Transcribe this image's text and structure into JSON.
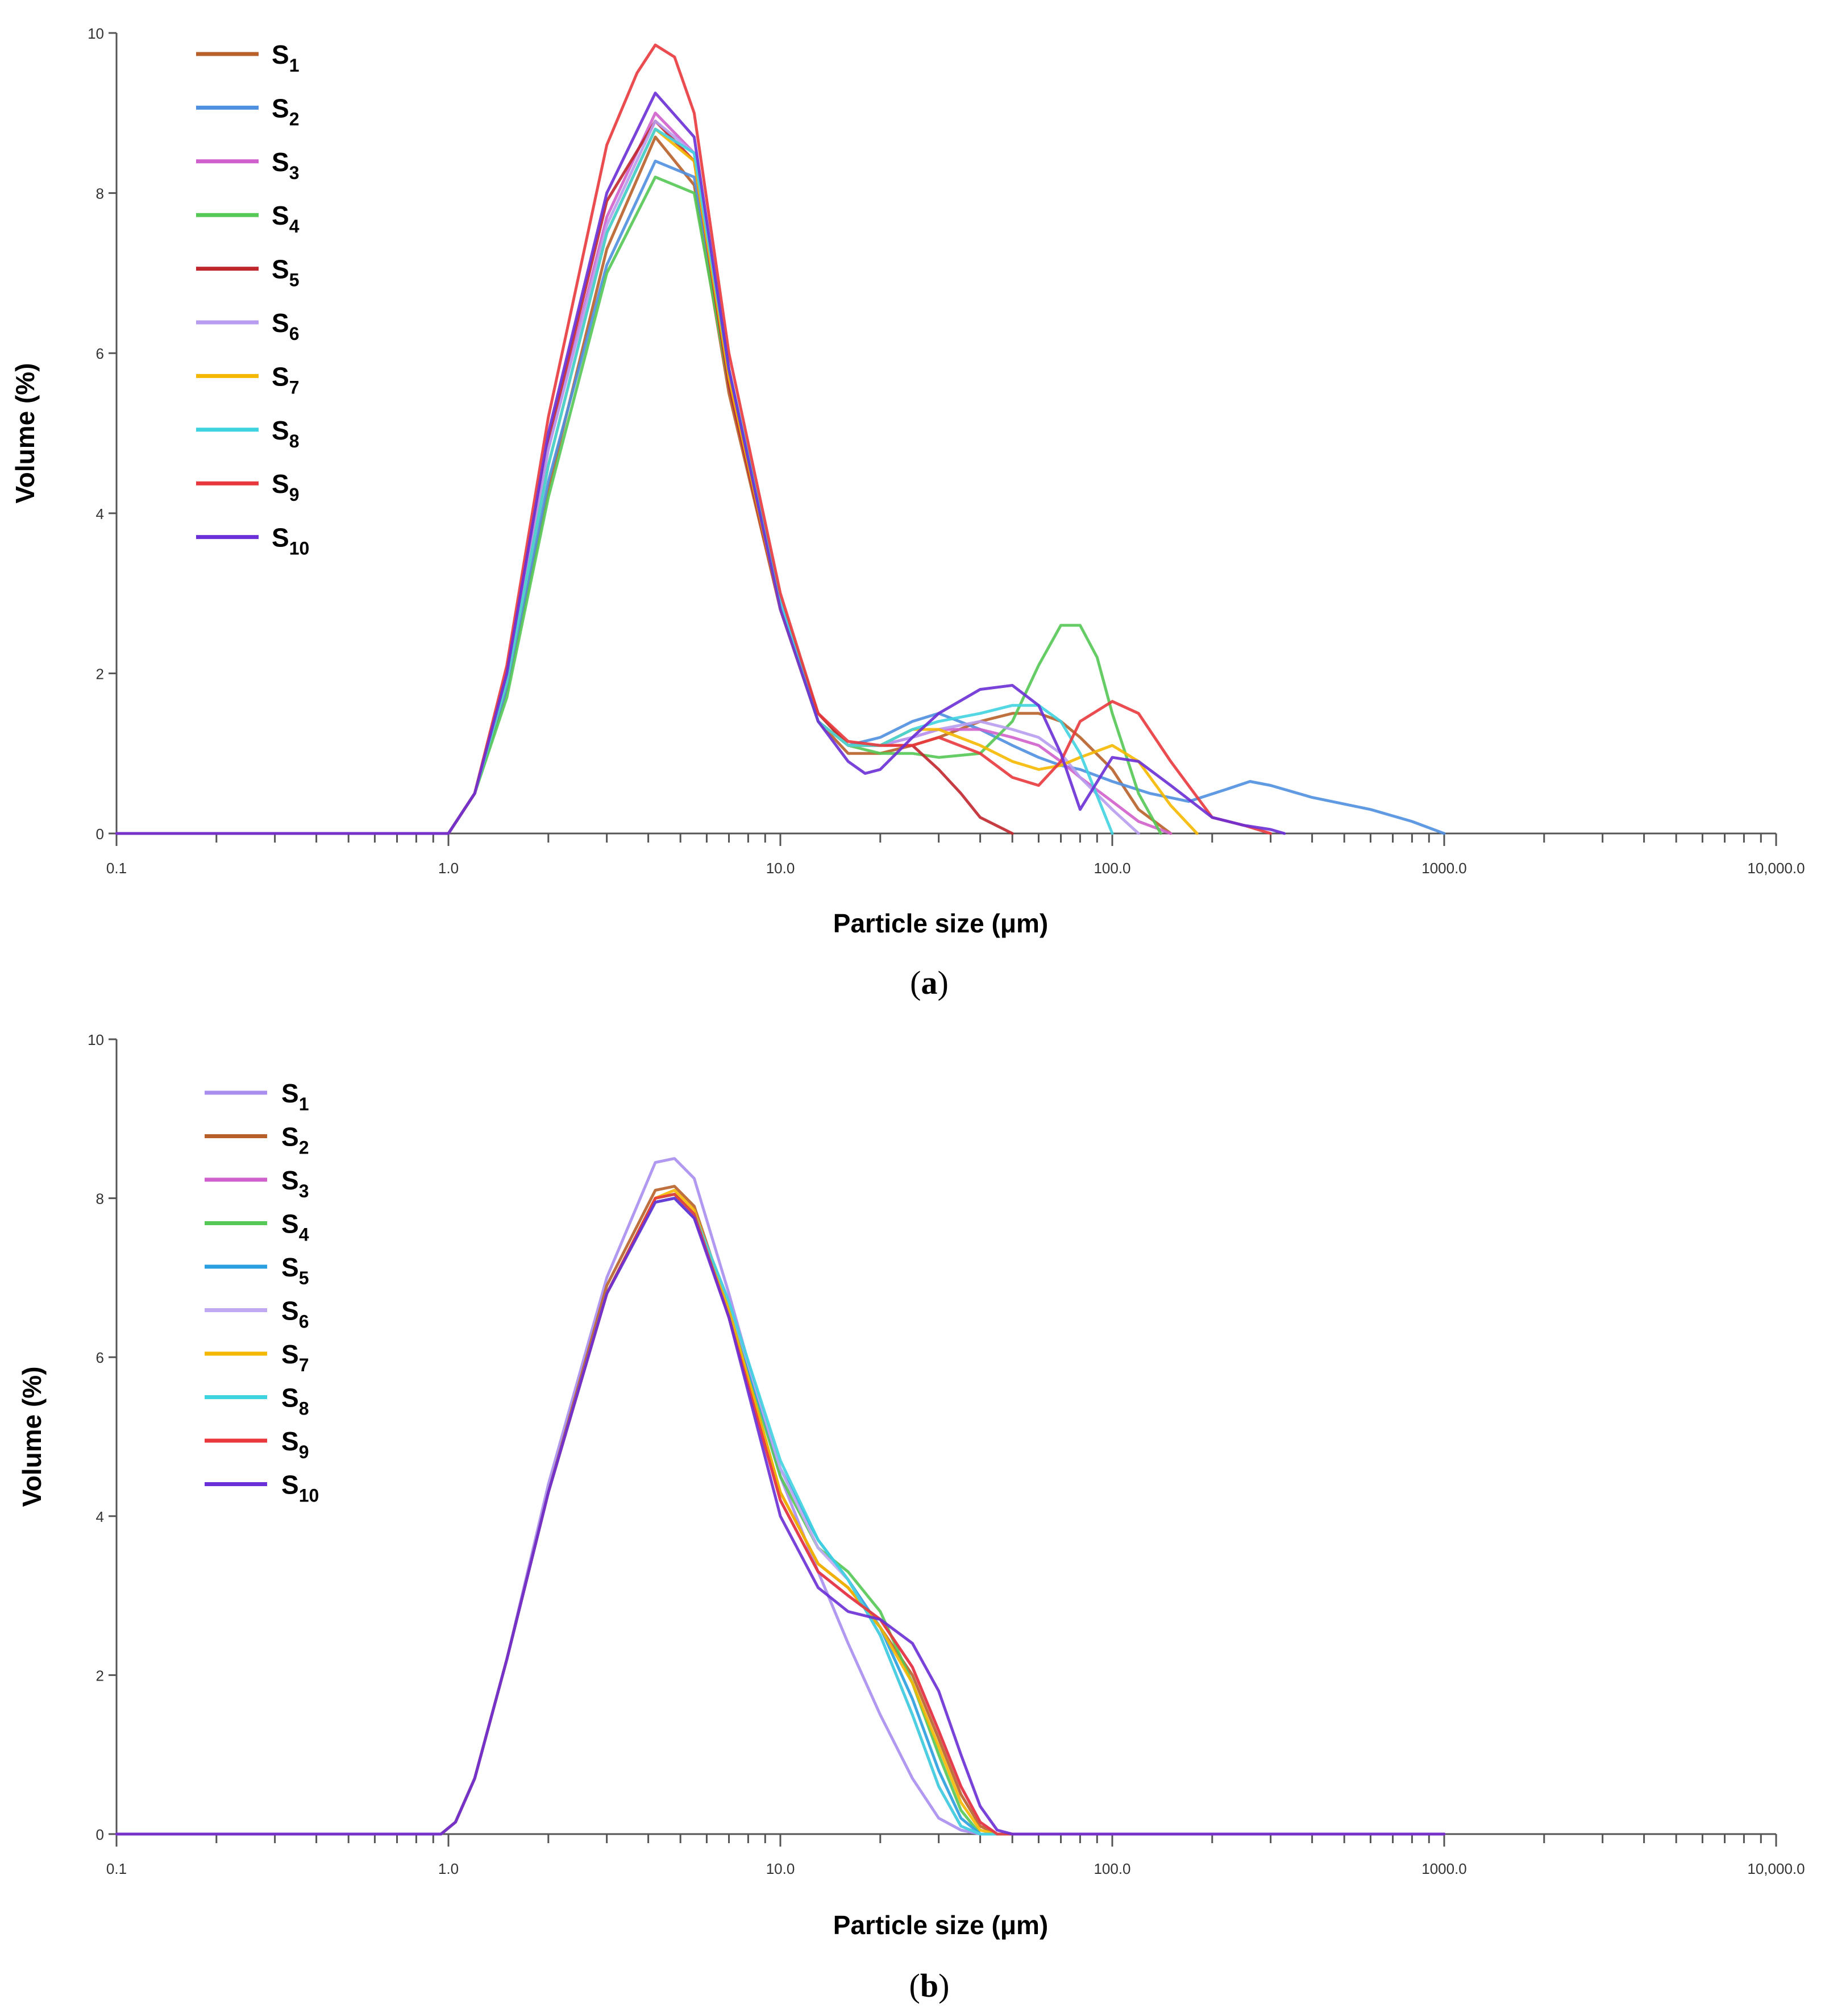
{
  "chart_data": [
    {
      "panel": "(a)",
      "panel_letter": "a",
      "type": "line",
      "xscale": "log",
      "xlim": [
        0.1,
        10000
      ],
      "ylim": [
        0,
        10
      ],
      "xlabel": "Particle size (μm)",
      "ylabel": "Volume (%)",
      "xtick_values": [
        0.1,
        1,
        10,
        100,
        1000,
        10000
      ],
      "xtick_labels": [
        "0.1",
        "1.0",
        "10.0",
        "100.0",
        "1000.0",
        "10,000.0"
      ],
      "ytick_values": [
        0,
        2,
        4,
        6,
        8,
        10
      ],
      "ytick_labels": [
        "0",
        "2",
        "4",
        "6",
        "8",
        "10"
      ],
      "legend_position": "top-left",
      "series": [
        {
          "name": "S",
          "sub": "1",
          "color": "#b8602a",
          "x": [
            0.1,
            1.0,
            1.2,
            1.5,
            2.0,
            3.0,
            4.2,
            5.5,
            7.0,
            10,
            13,
            16,
            20,
            25,
            30,
            40,
            50,
            60,
            70,
            80,
            100,
            120,
            150
          ],
          "y": [
            0,
            0,
            0.5,
            1.8,
            4.3,
            7.3,
            8.7,
            8.1,
            5.5,
            2.8,
            1.4,
            1.0,
            1.0,
            1.1,
            1.2,
            1.4,
            1.5,
            1.5,
            1.4,
            1.2,
            0.8,
            0.3,
            0
          ]
        },
        {
          "name": "S",
          "sub": "2",
          "color": "#4f8fe0",
          "x": [
            0.1,
            1.0,
            1.2,
            1.5,
            2.0,
            3.0,
            4.2,
            5.5,
            7.0,
            10,
            13,
            16,
            20,
            25,
            30,
            40,
            50,
            60,
            70,
            80,
            100,
            130,
            170,
            220,
            260,
            300,
            400,
            600,
            800,
            1000
          ],
          "y": [
            0,
            0,
            0.5,
            1.8,
            4.4,
            7.1,
            8.4,
            8.2,
            5.7,
            2.9,
            1.4,
            1.1,
            1.2,
            1.4,
            1.5,
            1.3,
            1.1,
            0.95,
            0.85,
            0.8,
            0.65,
            0.5,
            0.4,
            0.55,
            0.65,
            0.6,
            0.45,
            0.3,
            0.15,
            0
          ]
        },
        {
          "name": "S",
          "sub": "3",
          "color": "#d060cc",
          "x": [
            0.1,
            1.0,
            1.2,
            1.5,
            2.0,
            3.0,
            4.2,
            5.5,
            7.0,
            10,
            13,
            16,
            20,
            25,
            30,
            40,
            50,
            60,
            70,
            80,
            100,
            120,
            150
          ],
          "y": [
            0,
            0,
            0.5,
            2.0,
            4.8,
            7.7,
            9.0,
            8.5,
            5.7,
            2.8,
            1.4,
            1.1,
            1.1,
            1.2,
            1.3,
            1.3,
            1.2,
            1.1,
            0.9,
            0.7,
            0.4,
            0.15,
            0
          ]
        },
        {
          "name": "S",
          "sub": "4",
          "color": "#55c855",
          "x": [
            0.1,
            1.0,
            1.2,
            1.5,
            2.0,
            3.0,
            4.2,
            5.5,
            7.0,
            10,
            13,
            16,
            20,
            25,
            30,
            40,
            50,
            60,
            70,
            80,
            90,
            100,
            120,
            140
          ],
          "y": [
            0,
            0,
            0.5,
            1.7,
            4.2,
            7.0,
            8.2,
            8.0,
            5.6,
            2.9,
            1.5,
            1.1,
            1.0,
            1.0,
            0.95,
            1.0,
            1.4,
            2.1,
            2.6,
            2.6,
            2.2,
            1.5,
            0.5,
            0
          ]
        },
        {
          "name": "S",
          "sub": "5",
          "color": "#c0272d",
          "x": [
            0.1,
            1.0,
            1.2,
            1.5,
            2.0,
            3.0,
            4.2,
            5.5,
            7.0,
            10,
            13,
            16,
            20,
            25,
            30,
            35,
            40,
            50
          ],
          "y": [
            0,
            0,
            0.5,
            2.0,
            4.9,
            7.9,
            8.9,
            8.4,
            5.6,
            2.8,
            1.5,
            1.1,
            1.1,
            1.1,
            0.8,
            0.5,
            0.2,
            0
          ]
        },
        {
          "name": "S",
          "sub": "6",
          "color": "#b89cf0",
          "x": [
            0.1,
            1.0,
            1.2,
            1.5,
            2.0,
            3.0,
            4.2,
            5.5,
            7.0,
            10,
            13,
            16,
            20,
            25,
            30,
            40,
            50,
            60,
            70,
            80,
            100,
            120
          ],
          "y": [
            0,
            0,
            0.5,
            2.0,
            4.8,
            7.6,
            8.9,
            8.5,
            5.8,
            2.9,
            1.4,
            1.1,
            1.1,
            1.2,
            1.3,
            1.4,
            1.3,
            1.2,
            1.0,
            0.7,
            0.3,
            0
          ]
        },
        {
          "name": "S",
          "sub": "7",
          "color": "#f5b800",
          "x": [
            0.1,
            1.0,
            1.2,
            1.5,
            2.0,
            3.0,
            4.2,
            5.5,
            7.0,
            10,
            13,
            16,
            20,
            25,
            30,
            40,
            50,
            60,
            70,
            80,
            100,
            120,
            150,
            180
          ],
          "y": [
            0,
            0,
            0.5,
            1.9,
            4.6,
            7.5,
            8.8,
            8.4,
            5.7,
            2.8,
            1.4,
            1.1,
            1.1,
            1.3,
            1.3,
            1.1,
            0.9,
            0.8,
            0.85,
            0.95,
            1.1,
            0.9,
            0.35,
            0
          ]
        },
        {
          "name": "S",
          "sub": "8",
          "color": "#3fd3e0",
          "x": [
            0.1,
            1.0,
            1.2,
            1.5,
            2.0,
            3.0,
            4.2,
            5.5,
            7.0,
            10,
            13,
            16,
            20,
            25,
            30,
            40,
            50,
            60,
            70,
            80,
            100
          ],
          "y": [
            0,
            0,
            0.5,
            1.9,
            4.6,
            7.5,
            8.8,
            8.5,
            5.8,
            2.9,
            1.4,
            1.1,
            1.1,
            1.3,
            1.4,
            1.5,
            1.6,
            1.6,
            1.4,
            1.0,
            0
          ]
        },
        {
          "name": "S",
          "sub": "9",
          "color": "#e8383d",
          "x": [
            0.1,
            1.0,
            1.2,
            1.5,
            2.0,
            3.0,
            3.7,
            4.2,
            4.8,
            5.5,
            7.0,
            10,
            13,
            16,
            20,
            25,
            30,
            40,
            50,
            60,
            70,
            80,
            100,
            120,
            150,
            200,
            250,
            300
          ],
          "y": [
            0,
            0,
            0.5,
            2.1,
            5.2,
            8.6,
            9.5,
            9.85,
            9.7,
            9.0,
            6.0,
            3.0,
            1.5,
            1.15,
            1.1,
            1.1,
            1.2,
            1.0,
            0.7,
            0.6,
            0.9,
            1.4,
            1.65,
            1.5,
            0.9,
            0.2,
            0.1,
            0
          ]
        },
        {
          "name": "S",
          "sub": "10",
          "color": "#6a2fd6",
          "x": [
            0.1,
            1.0,
            1.2,
            1.5,
            2.0,
            3.0,
            4.2,
            5.5,
            7.0,
            10,
            13,
            16,
            18,
            20,
            25,
            30,
            40,
            50,
            60,
            70,
            80,
            100,
            120,
            150,
            200,
            250,
            300,
            330
          ],
          "y": [
            0,
            0,
            0.5,
            2.0,
            5.0,
            8.0,
            9.25,
            8.7,
            5.8,
            2.8,
            1.4,
            0.9,
            0.75,
            0.8,
            1.2,
            1.5,
            1.8,
            1.85,
            1.6,
            1.0,
            0.3,
            0.95,
            0.9,
            0.6,
            0.2,
            0.1,
            0.05,
            0
          ]
        }
      ]
    },
    {
      "panel": "(b)",
      "panel_letter": "b",
      "type": "line",
      "xscale": "log",
      "xlim": [
        0.1,
        10000
      ],
      "ylim": [
        0,
        10
      ],
      "xlabel": "Particle size (μm)",
      "ylabel": "Volume (%)",
      "xtick_values": [
        0.1,
        1,
        10,
        100,
        1000,
        10000
      ],
      "xtick_labels": [
        "0.1",
        "1.0",
        "10.0",
        "100.0",
        "1000.0",
        "10,000.0"
      ],
      "ytick_values": [
        0,
        2,
        4,
        6,
        8,
        10
      ],
      "ytick_labels": [
        "0",
        "2",
        "4",
        "6",
        "8",
        "10"
      ],
      "legend_position": "top-left",
      "series": [
        {
          "name": "S",
          "sub": "1",
          "color": "#a98ef0",
          "x": [
            0.1,
            0.95,
            1.05,
            1.2,
            1.5,
            2.0,
            3.0,
            4.2,
            4.8,
            5.5,
            7.0,
            10,
            13,
            16,
            20,
            25,
            30,
            35,
            40,
            1000
          ],
          "y": [
            0,
            0,
            0.15,
            0.7,
            2.2,
            4.4,
            7.0,
            8.45,
            8.5,
            8.25,
            6.8,
            4.5,
            3.3,
            2.4,
            1.5,
            0.7,
            0.2,
            0.05,
            0,
            0
          ]
        },
        {
          "name": "S",
          "sub": "2",
          "color": "#b8602a",
          "x": [
            0.1,
            0.95,
            1.05,
            1.2,
            1.5,
            2.0,
            3.0,
            4.2,
            4.8,
            5.5,
            7.0,
            10,
            13,
            16,
            20,
            25,
            30,
            35,
            40,
            45,
            1000
          ],
          "y": [
            0,
            0,
            0.15,
            0.7,
            2.2,
            4.3,
            6.9,
            8.1,
            8.15,
            7.9,
            6.6,
            4.3,
            3.4,
            3.1,
            2.6,
            2.0,
            1.2,
            0.5,
            0.1,
            0,
            0
          ]
        },
        {
          "name": "S",
          "sub": "3",
          "color": "#d060cc",
          "x": [
            0.1,
            0.95,
            1.05,
            1.2,
            1.5,
            2.0,
            3.0,
            4.2,
            4.8,
            5.5,
            7.0,
            10,
            13,
            16,
            20,
            25,
            30,
            35,
            40,
            45,
            1000
          ],
          "y": [
            0,
            0,
            0.15,
            0.7,
            2.2,
            4.3,
            6.8,
            8.0,
            8.05,
            7.8,
            6.5,
            4.2,
            3.3,
            3.0,
            2.7,
            2.1,
            1.3,
            0.6,
            0.15,
            0,
            0
          ]
        },
        {
          "name": "S",
          "sub": "4",
          "color": "#55c855",
          "x": [
            0.1,
            0.95,
            1.05,
            1.2,
            1.5,
            2.0,
            3.0,
            4.2,
            4.8,
            5.5,
            7.0,
            10,
            13,
            16,
            20,
            25,
            30,
            35,
            40,
            1000
          ],
          "y": [
            0,
            0,
            0.15,
            0.7,
            2.2,
            4.3,
            6.8,
            8.0,
            8.05,
            7.8,
            6.6,
            4.5,
            3.6,
            3.3,
            2.8,
            1.9,
            1.0,
            0.3,
            0,
            0
          ]
        },
        {
          "name": "S",
          "sub": "5",
          "color": "#2a9fe0",
          "x": [
            0.1,
            0.95,
            1.05,
            1.2,
            1.5,
            2.0,
            3.0,
            4.2,
            4.8,
            5.5,
            7.0,
            10,
            13,
            16,
            20,
            25,
            30,
            35,
            40,
            1000
          ],
          "y": [
            0,
            0,
            0.15,
            0.7,
            2.2,
            4.3,
            6.8,
            7.95,
            8.0,
            7.75,
            6.6,
            4.6,
            3.7,
            3.2,
            2.6,
            1.7,
            0.8,
            0.2,
            0,
            0
          ]
        },
        {
          "name": "S",
          "sub": "6",
          "color": "#c0a8f2",
          "x": [
            0.1,
            0.95,
            1.05,
            1.2,
            1.5,
            2.0,
            3.0,
            4.2,
            4.8,
            5.5,
            7.0,
            10,
            13,
            16,
            20,
            25,
            30,
            35,
            40,
            1000
          ],
          "y": [
            0,
            0,
            0.15,
            0.7,
            2.2,
            4.3,
            6.8,
            7.95,
            8.0,
            7.8,
            6.7,
            4.6,
            3.6,
            3.2,
            2.5,
            1.5,
            0.6,
            0.1,
            0,
            0
          ]
        },
        {
          "name": "S",
          "sub": "7",
          "color": "#f5b800",
          "x": [
            0.1,
            0.95,
            1.05,
            1.2,
            1.5,
            2.0,
            3.0,
            4.2,
            4.8,
            5.5,
            7.0,
            10,
            13,
            16,
            20,
            25,
            30,
            35,
            40,
            45,
            1000
          ],
          "y": [
            0,
            0,
            0.15,
            0.7,
            2.2,
            4.3,
            6.8,
            8.0,
            8.1,
            7.85,
            6.6,
            4.3,
            3.4,
            3.1,
            2.6,
            1.9,
            1.1,
            0.4,
            0.05,
            0,
            0
          ]
        },
        {
          "name": "S",
          "sub": "8",
          "color": "#3fd3e0",
          "x": [
            0.1,
            0.95,
            1.05,
            1.2,
            1.5,
            2.0,
            3.0,
            4.2,
            4.8,
            5.5,
            7.0,
            10,
            13,
            16,
            20,
            25,
            30,
            35,
            40,
            1000
          ],
          "y": [
            0,
            0,
            0.15,
            0.7,
            2.2,
            4.3,
            6.8,
            7.95,
            8.0,
            7.8,
            6.7,
            4.7,
            3.7,
            3.2,
            2.5,
            1.5,
            0.6,
            0.1,
            0,
            0
          ]
        },
        {
          "name": "S",
          "sub": "9",
          "color": "#e8383d",
          "x": [
            0.1,
            0.95,
            1.05,
            1.2,
            1.5,
            2.0,
            3.0,
            4.2,
            4.8,
            5.5,
            7.0,
            10,
            13,
            16,
            20,
            25,
            30,
            35,
            40,
            45,
            1000
          ],
          "y": [
            0,
            0,
            0.15,
            0.7,
            2.2,
            4.3,
            6.8,
            8.0,
            8.05,
            7.8,
            6.5,
            4.2,
            3.3,
            3.0,
            2.7,
            2.1,
            1.3,
            0.6,
            0.15,
            0,
            0
          ]
        },
        {
          "name": "S",
          "sub": "10",
          "color": "#6a2fd6",
          "x": [
            0.1,
            0.95,
            1.05,
            1.2,
            1.5,
            2.0,
            3.0,
            4.2,
            4.8,
            5.5,
            7.0,
            10,
            13,
            16,
            20,
            25,
            30,
            35,
            40,
            45,
            50,
            1000
          ],
          "y": [
            0,
            0,
            0.15,
            0.7,
            2.2,
            4.3,
            6.8,
            7.95,
            8.0,
            7.75,
            6.5,
            4.0,
            3.1,
            2.8,
            2.7,
            2.4,
            1.8,
            1.0,
            0.35,
            0.05,
            0,
            0
          ]
        }
      ]
    }
  ]
}
